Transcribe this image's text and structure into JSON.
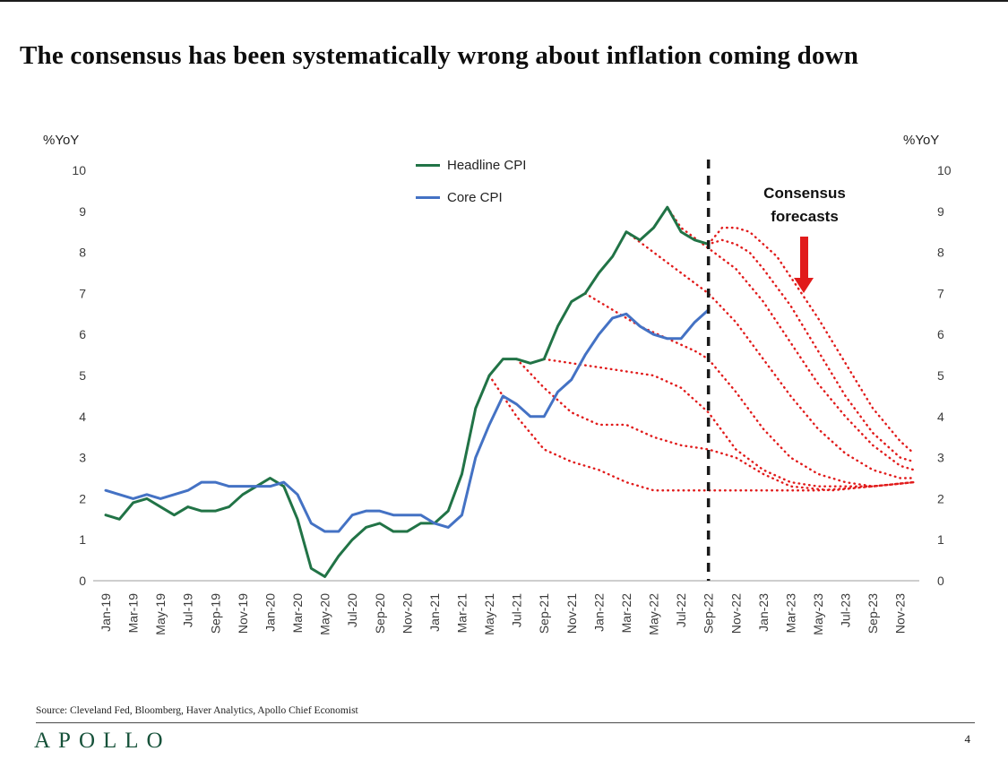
{
  "page": {
    "title": "The consensus has been systematically wrong about inflation coming down",
    "source": "Source: Cleveland Fed, Bloomberg, Haver Analytics, Apollo Chief Economist",
    "logo_text": "APOLLO",
    "logo_color": "#17523a",
    "page_number": "4"
  },
  "chart_data": {
    "type": "line",
    "title": "",
    "ylabel_left": "%YoY",
    "ylabel_right": "%YoY",
    "ylim": [
      0,
      10
    ],
    "yticks": [
      0,
      1,
      2,
      3,
      4,
      5,
      6,
      7,
      8,
      9,
      10
    ],
    "grid": false,
    "legend_position": "top-center",
    "legend": [
      {
        "label": "Headline CPI",
        "color": "#217346"
      },
      {
        "label": "Core CPI",
        "color": "#4472c4"
      }
    ],
    "annotation": {
      "label": "Consensus forecasts",
      "arrow": "down",
      "color": "#e11b1b"
    },
    "forecast_divider_month": "Sep-22",
    "forecast_color": "#e11b1b",
    "divider_color": "#1a1a1a",
    "x_months": [
      "Jan-19",
      "Feb-19",
      "Mar-19",
      "Apr-19",
      "May-19",
      "Jun-19",
      "Jul-19",
      "Aug-19",
      "Sep-19",
      "Oct-19",
      "Nov-19",
      "Dec-19",
      "Jan-20",
      "Feb-20",
      "Mar-20",
      "Apr-20",
      "May-20",
      "Jun-20",
      "Jul-20",
      "Aug-20",
      "Sep-20",
      "Oct-20",
      "Nov-20",
      "Dec-20",
      "Jan-21",
      "Feb-21",
      "Mar-21",
      "Apr-21",
      "May-21",
      "Jun-21",
      "Jul-21",
      "Aug-21",
      "Sep-21",
      "Oct-21",
      "Nov-21",
      "Dec-21",
      "Jan-22",
      "Feb-22",
      "Mar-22",
      "Apr-22",
      "May-22",
      "Jun-22",
      "Jul-22",
      "Aug-22",
      "Sep-22",
      "Oct-22",
      "Nov-22",
      "Dec-22",
      "Jan-23",
      "Feb-23",
      "Mar-23",
      "Apr-23",
      "May-23",
      "Jun-23",
      "Jul-23",
      "Aug-23",
      "Sep-23",
      "Oct-23",
      "Nov-23",
      "Dec-23"
    ],
    "xtick_labels": [
      "Jan-19",
      "Mar-19",
      "May-19",
      "Jul-19",
      "Sep-19",
      "Nov-19",
      "Jan-20",
      "Mar-20",
      "May-20",
      "Jul-20",
      "Sep-20",
      "Nov-20",
      "Jan-21",
      "Mar-21",
      "May-21",
      "Jul-21",
      "Sep-21",
      "Nov-21",
      "Jan-22",
      "Mar-22",
      "May-22",
      "Jul-22",
      "Sep-22",
      "Nov-22",
      "Jan-23",
      "Mar-23",
      "May-23",
      "Jul-23",
      "Sep-23",
      "Nov-23"
    ],
    "series": [
      {
        "name": "Headline CPI",
        "color": "#217346",
        "style": "solid",
        "values": [
          1.6,
          1.5,
          1.9,
          2.0,
          1.8,
          1.6,
          1.8,
          1.7,
          1.7,
          1.8,
          2.1,
          2.3,
          2.5,
          2.3,
          1.5,
          0.3,
          0.1,
          0.6,
          1.0,
          1.3,
          1.4,
          1.2,
          1.2,
          1.4,
          1.4,
          1.7,
          2.6,
          4.2,
          5.0,
          5.4,
          5.4,
          5.3,
          5.4,
          6.2,
          6.8,
          7.0,
          7.5,
          7.9,
          8.5,
          8.3,
          8.6,
          9.1,
          8.5,
          8.3,
          8.2
        ]
      },
      {
        "name": "Core CPI",
        "color": "#4472c4",
        "style": "solid",
        "values": [
          2.2,
          2.1,
          2.0,
          2.1,
          2.0,
          2.1,
          2.2,
          2.4,
          2.4,
          2.3,
          2.3,
          2.3,
          2.3,
          2.4,
          2.1,
          1.4,
          1.2,
          1.2,
          1.6,
          1.7,
          1.7,
          1.6,
          1.6,
          1.6,
          1.4,
          1.3,
          1.6,
          3.0,
          3.8,
          4.5,
          4.3,
          4.0,
          4.0,
          4.6,
          4.9,
          5.5,
          6.0,
          6.4,
          6.5,
          6.2,
          6.0,
          5.9,
          5.9,
          6.3,
          6.6
        ]
      }
    ],
    "consensus_forecasts": [
      {
        "name": "vintage-1",
        "style": "dotted",
        "points": [
          [
            28,
            5.0
          ],
          [
            30,
            4.0
          ],
          [
            32,
            3.2
          ],
          [
            34,
            2.9
          ],
          [
            36,
            2.7
          ],
          [
            38,
            2.4
          ],
          [
            40,
            2.2
          ],
          [
            44,
            2.2
          ],
          [
            48,
            2.2
          ],
          [
            52,
            2.2
          ],
          [
            56,
            2.3
          ],
          [
            59,
            2.4
          ]
        ]
      },
      {
        "name": "vintage-2",
        "style": "dotted",
        "points": [
          [
            30,
            5.4
          ],
          [
            32,
            4.7
          ],
          [
            34,
            4.1
          ],
          [
            36,
            3.8
          ],
          [
            38,
            3.8
          ],
          [
            40,
            3.5
          ],
          [
            42,
            3.3
          ],
          [
            44,
            3.2
          ],
          [
            46,
            3.0
          ],
          [
            48,
            2.6
          ],
          [
            50,
            2.3
          ],
          [
            53,
            2.2
          ],
          [
            56,
            2.3
          ],
          [
            59,
            2.4
          ]
        ]
      },
      {
        "name": "vintage-3",
        "style": "dotted",
        "points": [
          [
            32,
            5.4
          ],
          [
            34,
            5.3
          ],
          [
            36,
            5.2
          ],
          [
            38,
            5.1
          ],
          [
            40,
            5.0
          ],
          [
            42,
            4.7
          ],
          [
            44,
            4.1
          ],
          [
            46,
            3.2
          ],
          [
            48,
            2.7
          ],
          [
            50,
            2.4
          ],
          [
            52,
            2.3
          ],
          [
            56,
            2.3
          ],
          [
            59,
            2.4
          ]
        ]
      },
      {
        "name": "vintage-4",
        "style": "dotted",
        "points": [
          [
            35,
            7.0
          ],
          [
            37,
            6.6
          ],
          [
            39,
            6.2
          ],
          [
            41,
            5.9
          ],
          [
            43,
            5.6
          ],
          [
            44,
            5.4
          ],
          [
            46,
            4.6
          ],
          [
            48,
            3.7
          ],
          [
            50,
            3.0
          ],
          [
            52,
            2.6
          ],
          [
            54,
            2.4
          ],
          [
            56,
            2.3
          ],
          [
            59,
            2.4
          ]
        ]
      },
      {
        "name": "vintage-5",
        "style": "dotted",
        "points": [
          [
            38,
            8.5
          ],
          [
            40,
            8.0
          ],
          [
            42,
            7.5
          ],
          [
            44,
            7.0
          ],
          [
            46,
            6.3
          ],
          [
            48,
            5.4
          ],
          [
            50,
            4.5
          ],
          [
            52,
            3.7
          ],
          [
            54,
            3.1
          ],
          [
            56,
            2.7
          ],
          [
            58,
            2.5
          ],
          [
            59,
            2.5
          ]
        ]
      },
      {
        "name": "vintage-6",
        "style": "dotted",
        "points": [
          [
            41,
            9.1
          ],
          [
            42,
            8.6
          ],
          [
            44,
            8.1
          ],
          [
            46,
            7.6
          ],
          [
            48,
            6.8
          ],
          [
            50,
            5.8
          ],
          [
            52,
            4.8
          ],
          [
            54,
            4.0
          ],
          [
            56,
            3.3
          ],
          [
            58,
            2.8
          ],
          [
            59,
            2.7
          ]
        ]
      },
      {
        "name": "vintage-7",
        "style": "dotted",
        "points": [
          [
            41,
            9.1
          ],
          [
            42,
            8.5
          ],
          [
            43,
            8.3
          ],
          [
            44,
            8.2
          ],
          [
            45,
            8.3
          ],
          [
            46,
            8.2
          ],
          [
            47,
            8.0
          ],
          [
            48,
            7.6
          ],
          [
            50,
            6.7
          ],
          [
            52,
            5.6
          ],
          [
            54,
            4.5
          ],
          [
            56,
            3.6
          ],
          [
            58,
            3.0
          ],
          [
            59,
            2.9
          ]
        ]
      },
      {
        "name": "vintage-8",
        "style": "dotted",
        "points": [
          [
            44,
            8.2
          ],
          [
            45,
            8.6
          ],
          [
            46,
            8.6
          ],
          [
            47,
            8.5
          ],
          [
            48,
            8.2
          ],
          [
            49,
            7.9
          ],
          [
            50,
            7.4
          ],
          [
            52,
            6.4
          ],
          [
            54,
            5.3
          ],
          [
            56,
            4.2
          ],
          [
            58,
            3.4
          ],
          [
            59,
            3.1
          ]
        ]
      }
    ]
  }
}
